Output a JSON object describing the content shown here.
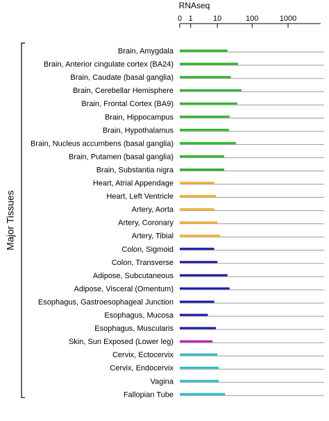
{
  "chart_data": {
    "type": "bar",
    "orientation": "horizontal",
    "title": "RNAseq",
    "x_scale": "log",
    "x_ticks": [
      "0",
      "1",
      "10",
      "100",
      "1000"
    ],
    "xlim": [
      0,
      1000
    ],
    "group_label": "Major Tissues",
    "grid": "horizontal row lines",
    "categories": [
      "Brain, Amygdala",
      "Brain, Anterior cingulate cortex (BA24)",
      "Brain, Caudate (basal ganglia)",
      "Brain, Cerebellar Hemisphere",
      "Brain, Frontal Cortex (BA9)",
      "Brain, Hippocampus",
      "Brain, Hypothalamus",
      "Brain, Nucleus accumbens (basal ganglia)",
      "Brain, Putamen (basal ganglia)",
      "Brain, Substantia nigra",
      "Heart, Atrial Appendage",
      "Heart, Left Ventricle",
      "Artery, Aorta",
      "Artery, Coronary",
      "Artery, Tibial",
      "Colon, Sigmoid",
      "Colon, Transverse",
      "Adipose, Subcutaneous",
      "Adipose, Visceral (Omentum)",
      "Esophagus, Gastroesophageal Junction",
      "Esophagus, Mucosa",
      "Esophagus, Muscularis",
      "Skin, Sun Exposed (Lower leg)",
      "Cervix, Ectocervix",
      "Cervix, Endocervix",
      "Vagina",
      "Fallopian Tube"
    ],
    "values": [
      20,
      40,
      25,
      50,
      38,
      23,
      22,
      35,
      16,
      16,
      8,
      9,
      8,
      10,
      12,
      8,
      10,
      20,
      23,
      8,
      5,
      9,
      7,
      10,
      11,
      11,
      17
    ],
    "colors": [
      "#2bb52b",
      "#2bb52b",
      "#2bb52b",
      "#2bb52b",
      "#2bb52b",
      "#2bb52b",
      "#2bb52b",
      "#2bb52b",
      "#2bb52b",
      "#2bb52b",
      "#f5b633",
      "#f5b633",
      "#f5b633",
      "#f5b633",
      "#f5b633",
      "#1a1aa6",
      "#1a1aa6",
      "#1a1aa6",
      "#1a1aa6",
      "#1a1aa6",
      "#1a1aa6",
      "#1a1aa6",
      "#b31fb3",
      "#2bbcc4",
      "#2bbcc4",
      "#2bbcc4",
      "#2bbcc4"
    ]
  }
}
